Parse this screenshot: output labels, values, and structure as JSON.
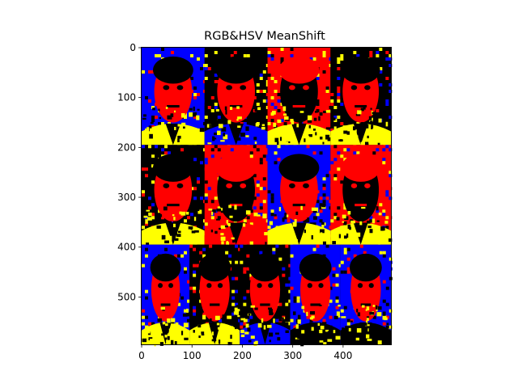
{
  "chart_data": {
    "type": "image",
    "title": "RGB&HSV MeanShift",
    "xlim": [
      0,
      495
    ],
    "ylim": [
      595,
      0
    ],
    "xticks": [
      0,
      100,
      200,
      300,
      400
    ],
    "yticks": [
      0,
      100,
      200,
      300,
      400,
      500
    ],
    "palette": {
      "red": "#ff0000",
      "blue": "#0000ff",
      "yellow": "#ffff00",
      "black": "#000000"
    },
    "panels": {
      "row1": {
        "y": [
          0,
          195
        ],
        "cuts": [
          0,
          125,
          250,
          375,
          495
        ]
      },
      "row2": {
        "y": [
          195,
          395
        ],
        "cuts": [
          0,
          125,
          250,
          375,
          495
        ]
      },
      "row3": {
        "y": [
          395,
          595
        ],
        "cuts": [
          0,
          95,
          195,
          295,
          395,
          495
        ]
      }
    }
  }
}
